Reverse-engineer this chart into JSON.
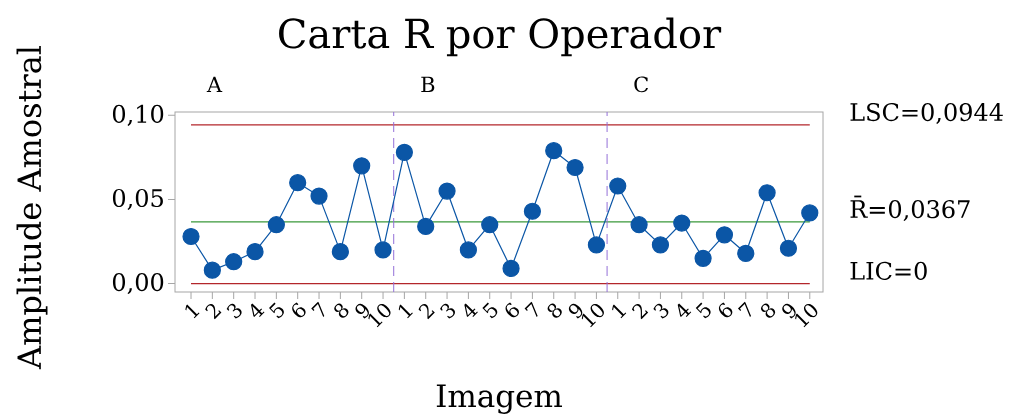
{
  "chart_data": {
    "type": "line",
    "title": "Carta R por Operador",
    "xlabel": "Imagem",
    "ylabel": "Amplitude Amostral",
    "categories": [
      "1",
      "2",
      "3",
      "4",
      "5",
      "6",
      "7",
      "8",
      "9",
      "10",
      "1",
      "2",
      "3",
      "4",
      "5",
      "6",
      "7",
      "8",
      "9",
      "10",
      "1",
      "2",
      "3",
      "4",
      "5",
      "6",
      "7",
      "8",
      "9",
      "10"
    ],
    "ylim": [
      -0.005,
      0.102
    ],
    "yticks": [
      {
        "value": 0,
        "label": "0,00"
      },
      {
        "value": 0.05,
        "label": "0,05"
      },
      {
        "value": 0.1,
        "label": "0,10"
      }
    ],
    "series": [
      {
        "color": "#0b56a6",
        "values": [
          0.028,
          0.008,
          0.013,
          0.019,
          0.035,
          0.06,
          0.052,
          0.019,
          0.07,
          0.02,
          0.078,
          0.034,
          0.055,
          0.02,
          0.035,
          0.009,
          0.043,
          0.079,
          0.069,
          0.023,
          0.058,
          0.035,
          0.023,
          0.036,
          0.015,
          0.029,
          0.018,
          0.054,
          0.021,
          0.042
        ]
      }
    ],
    "marker": "circle",
    "line_style": "solid",
    "ref_lines": [
      {
        "axis": "y",
        "value": 0.0944,
        "label": "LSC=0,0944",
        "color": "#b3262b"
      },
      {
        "axis": "y",
        "value": 0.0367,
        "label": "R̄=0,0367",
        "color": "#3a983a"
      },
      {
        "axis": "y",
        "value": 0,
        "label": "LIC=0",
        "color": "#b3262b"
      }
    ],
    "annotations": [
      "A",
      "B",
      "C"
    ]
  }
}
